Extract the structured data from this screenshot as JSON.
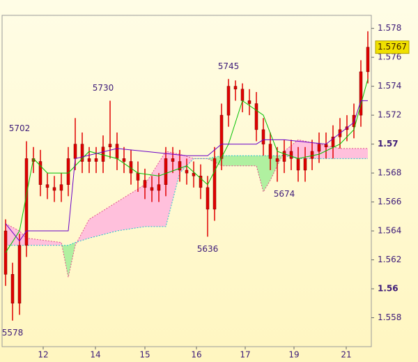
{
  "chart_data": {
    "type": "candlestick",
    "candle_color": "#e00000",
    "background": [
      "#fffde6",
      "#fff6c0"
    ],
    "text_color": "#3c1a78",
    "x": [
      0,
      1,
      2,
      3,
      4,
      5,
      6,
      7,
      8,
      9,
      10,
      11,
      12,
      13,
      14,
      15,
      16,
      17,
      18,
      19,
      20,
      21,
      22,
      23,
      24,
      25,
      26,
      27,
      28,
      29,
      30,
      31,
      32,
      33,
      34,
      35,
      36,
      37,
      38,
      39,
      40,
      41,
      42,
      43,
      44,
      45,
      46,
      47,
      48,
      49,
      50,
      51,
      52
    ],
    "open": [
      1.564,
      1.561,
      1.559,
      1.563,
      1.569,
      1.5688,
      1.5672,
      1.567,
      1.5668,
      1.5672,
      1.569,
      1.57,
      1.5688,
      1.569,
      1.5688,
      1.5698,
      1.57,
      1.569,
      1.5688,
      1.568,
      1.5675,
      1.567,
      1.5668,
      1.5672,
      1.569,
      1.5688,
      1.5682,
      1.568,
      1.5678,
      1.567,
      1.5655,
      1.569,
      1.572,
      1.574,
      1.5738,
      1.573,
      1.5728,
      1.571,
      1.57,
      1.569,
      1.5688,
      1.5695,
      1.569,
      1.5682,
      1.569,
      1.5695,
      1.57,
      1.5698,
      1.5705,
      1.571,
      1.5712,
      1.572,
      1.575
    ],
    "high": [
      1.5648,
      1.5618,
      1.5638,
      1.5702,
      1.5698,
      1.5696,
      1.568,
      1.5678,
      1.568,
      1.5698,
      1.5718,
      1.5708,
      1.5698,
      1.5698,
      1.5706,
      1.573,
      1.5708,
      1.5698,
      1.5696,
      1.5688,
      1.5683,
      1.5678,
      1.568,
      1.5698,
      1.5698,
      1.5696,
      1.569,
      1.5688,
      1.5686,
      1.5678,
      1.5698,
      1.5728,
      1.5745,
      1.5744,
      1.5742,
      1.5738,
      1.5736,
      1.5718,
      1.5708,
      1.5698,
      1.5703,
      1.5703,
      1.5698,
      1.5698,
      1.5703,
      1.5708,
      1.5708,
      1.5713,
      1.5718,
      1.572,
      1.5728,
      1.5758,
      1.5778
    ],
    "low": [
      1.5602,
      1.5578,
      1.5582,
      1.5622,
      1.568,
      1.5664,
      1.5662,
      1.566,
      1.566,
      1.5664,
      1.5682,
      1.568,
      1.568,
      1.568,
      1.568,
      1.569,
      1.5682,
      1.568,
      1.5672,
      1.5667,
      1.5662,
      1.566,
      1.566,
      1.5664,
      1.568,
      1.5674,
      1.5672,
      1.567,
      1.5662,
      1.5636,
      1.5647,
      1.5682,
      1.5712,
      1.573,
      1.5722,
      1.572,
      1.5702,
      1.5692,
      1.5682,
      1.5674,
      1.568,
      1.5682,
      1.5674,
      1.5674,
      1.5682,
      1.5687,
      1.569,
      1.569,
      1.5697,
      1.5702,
      1.5704,
      1.5712,
      1.5742
    ],
    "close": [
      1.561,
      1.559,
      1.563,
      1.569,
      1.5688,
      1.5672,
      1.567,
      1.5668,
      1.5672,
      1.569,
      1.57,
      1.5688,
      1.569,
      1.5688,
      1.5698,
      1.57,
      1.569,
      1.5688,
      1.568,
      1.5675,
      1.567,
      1.5668,
      1.5672,
      1.569,
      1.5688,
      1.5682,
      1.568,
      1.5678,
      1.567,
      1.5655,
      1.569,
      1.572,
      1.574,
      1.5738,
      1.573,
      1.5728,
      1.571,
      1.57,
      1.569,
      1.5688,
      1.5695,
      1.569,
      1.5682,
      1.569,
      1.5695,
      1.57,
      1.5698,
      1.5705,
      1.571,
      1.5712,
      1.572,
      1.575,
      1.5767
    ],
    "lines": [
      {
        "color": "#00c000",
        "x": [
          0,
          2,
          4,
          6,
          9,
          12,
          16,
          19,
          22,
          26,
          29,
          32,
          34,
          37,
          39,
          42,
          45,
          48,
          50,
          52
        ],
        "values": [
          1.5625,
          1.564,
          1.569,
          1.568,
          1.568,
          1.5695,
          1.569,
          1.568,
          1.5678,
          1.5685,
          1.5672,
          1.57,
          1.573,
          1.572,
          1.5695,
          1.569,
          1.5693,
          1.57,
          1.571,
          1.5745
        ]
      },
      {
        "color": "#6a00c8",
        "x": [
          0,
          2,
          3,
          9,
          10,
          16,
          20,
          26,
          29,
          31,
          36,
          37,
          40,
          46,
          50,
          51,
          52
        ],
        "values": [
          1.5645,
          1.5633,
          1.564,
          1.564,
          1.569,
          1.5697,
          1.5695,
          1.5692,
          1.5692,
          1.57,
          1.57,
          1.5703,
          1.5703,
          1.57,
          1.5715,
          1.573,
          1.573
        ]
      }
    ],
    "cloud": {
      "x": [
        0,
        2,
        3,
        8,
        9,
        10,
        12,
        16,
        20,
        23,
        25,
        27,
        29,
        31,
        33,
        36,
        37,
        38,
        40,
        42,
        45,
        48,
        52
      ],
      "span_a": [
        1.5645,
        1.564,
        1.5635,
        1.5632,
        1.5608,
        1.563,
        1.5648,
        1.566,
        1.5672,
        1.5695,
        1.5693,
        1.569,
        1.569,
        1.5685,
        1.5685,
        1.5685,
        1.5667,
        1.5675,
        1.5695,
        1.5703,
        1.57,
        1.5697,
        1.5697
      ],
      "span_b": [
        1.563,
        1.563,
        1.563,
        1.563,
        1.563,
        1.5632,
        1.5635,
        1.564,
        1.5643,
        1.5643,
        1.568,
        1.569,
        1.569,
        1.5692,
        1.5692,
        1.5692,
        1.5692,
        1.5692,
        1.5692,
        1.569,
        1.569,
        1.569,
        1.569
      ],
      "span_a_color": "#e0508a",
      "span_b_color": "#20c0d0",
      "up_fill": "#ffc0dc",
      "down_fill": "#b0f0a0"
    },
    "last_price": 1.5767,
    "last_price_color": "#f0e000",
    "annotations": [
      {
        "text": "5578",
        "x": 1,
        "y": 1.5578,
        "position": "below"
      },
      {
        "text": "5702",
        "x": 2,
        "y": 1.5702,
        "position": "above"
      },
      {
        "text": "5730",
        "x": 14,
        "y": 1.573,
        "position": "above"
      },
      {
        "text": "5745",
        "x": 32,
        "y": 1.5745,
        "position": "above"
      },
      {
        "text": "5636",
        "x": 29,
        "y": 1.5636,
        "position": "below"
      },
      {
        "text": "5674",
        "x": 40,
        "y": 1.5674,
        "position": "below"
      }
    ],
    "xlim": [
      -0.5,
      52.5
    ],
    "xticks": [
      {
        "value": 5.4,
        "label": "12"
      },
      {
        "value": 12.9,
        "label": "14"
      },
      {
        "value": 20,
        "label": "15"
      },
      {
        "value": 27.4,
        "label": "16"
      },
      {
        "value": 34.4,
        "label": "17"
      },
      {
        "value": 41.4,
        "label": "19"
      },
      {
        "value": 48.9,
        "label": "21"
      }
    ],
    "ylim": [
      1.556,
      1.5789
    ],
    "yticks": [
      1.558,
      1.56,
      1.562,
      1.564,
      1.566,
      1.568,
      1.57,
      1.572,
      1.574,
      1.576,
      1.578
    ],
    "bold_ticks": [
      1.56,
      1.57
    ]
  }
}
